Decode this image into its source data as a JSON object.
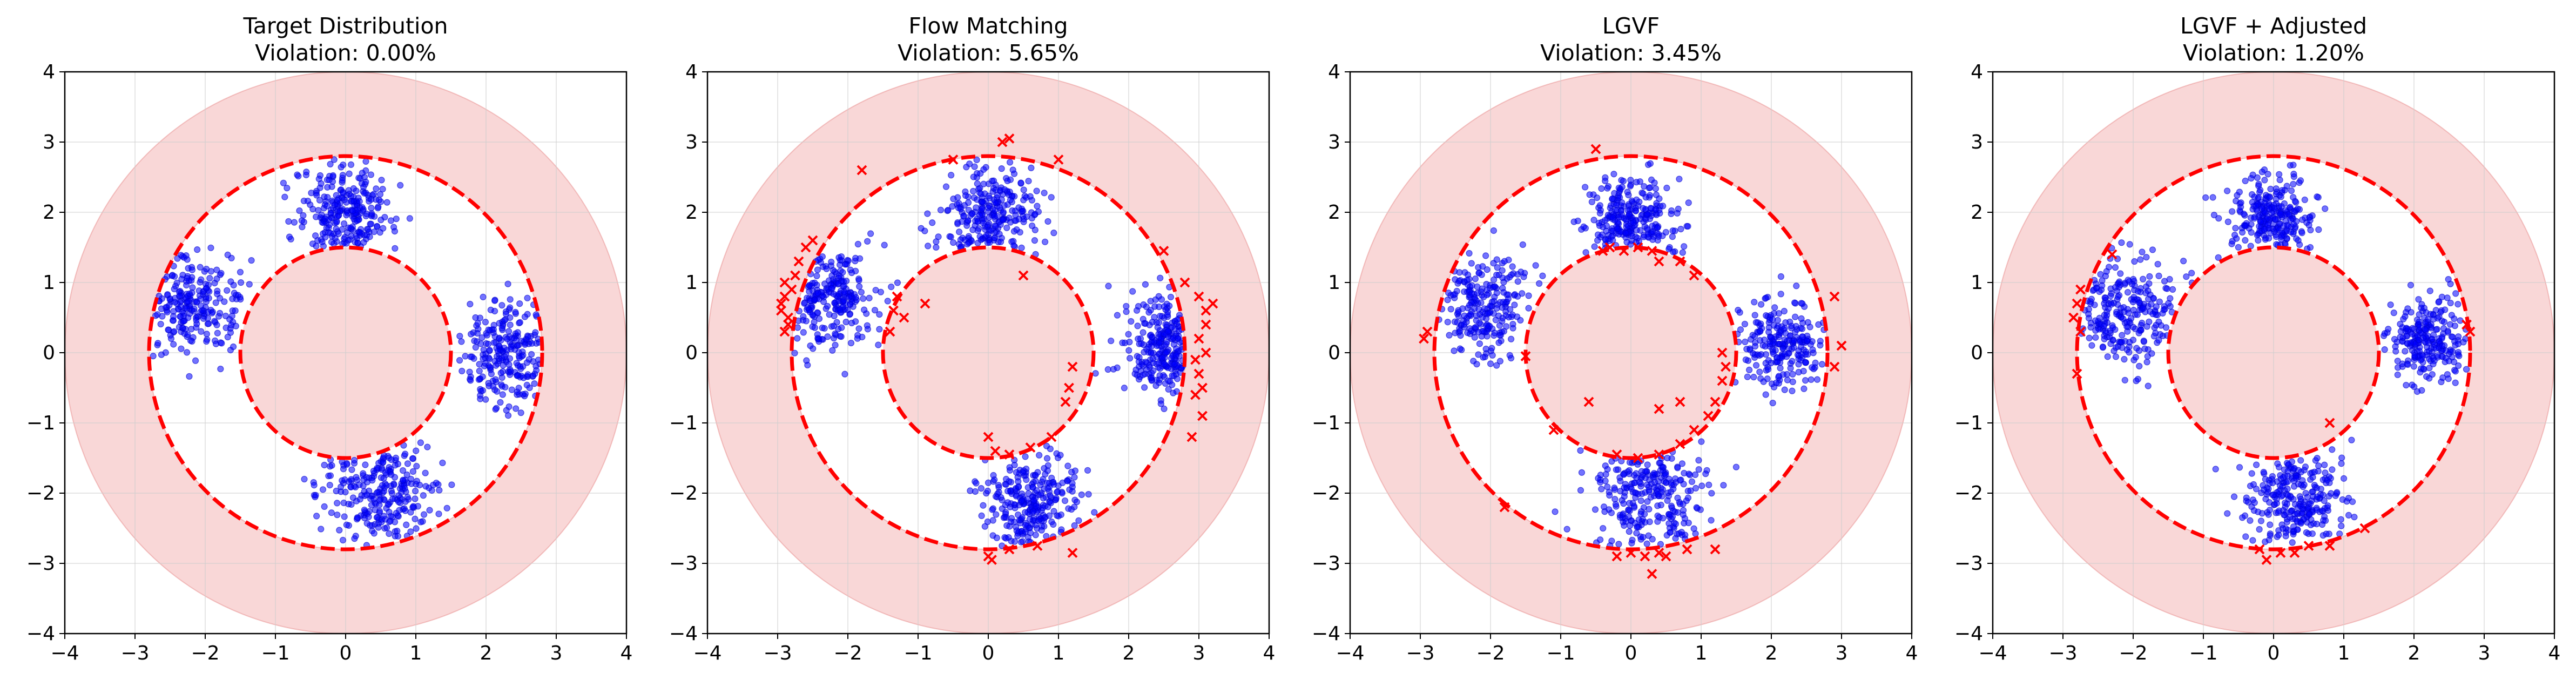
{
  "chart_data": [
    {
      "type": "scatter",
      "title": "Target Distribution",
      "subtitle": "Violation: 0.00%",
      "xlim": [
        -4,
        4
      ],
      "ylim": [
        -4,
        4
      ],
      "xticks": [
        "−4",
        "−3",
        "−2",
        "−1",
        "0",
        "1",
        "2",
        "3",
        "4"
      ],
      "yticks": [
        "−4",
        "−3",
        "−2",
        "−1",
        "0",
        "1",
        "2",
        "3",
        "4"
      ],
      "grid": true,
      "constraint": {
        "outer_shade_radius": 4.0,
        "annulus_outer_radius": 2.8,
        "annulus_inner_radius": 1.5
      },
      "clusters": [
        {
          "center": [
            0.0,
            2.0
          ],
          "spread": 0.35,
          "count": 260
        },
        {
          "center": [
            -2.2,
            0.7
          ],
          "spread": 0.35,
          "count": 230
        },
        {
          "center": [
            2.3,
            0.0
          ],
          "spread": 0.35,
          "count": 240
        },
        {
          "center": [
            0.5,
            -2.0
          ],
          "spread": 0.4,
          "count": 260
        }
      ],
      "violations": []
    },
    {
      "type": "scatter",
      "title": "Flow Matching",
      "subtitle": "Violation: 5.65%",
      "xlim": [
        -4,
        4
      ],
      "ylim": [
        -4,
        4
      ],
      "xticks": [
        "−4",
        "−3",
        "−2",
        "−1",
        "0",
        "1",
        "2",
        "3",
        "4"
      ],
      "yticks": [
        "−4",
        "−3",
        "−2",
        "−1",
        "0",
        "1",
        "2",
        "3",
        "4"
      ],
      "grid": true,
      "constraint": {
        "outer_shade_radius": 4.0,
        "annulus_outer_radius": 2.8,
        "annulus_inner_radius": 1.5
      },
      "clusters": [
        {
          "center": [
            0.0,
            1.95
          ],
          "spread": 0.35,
          "count": 260
        },
        {
          "center": [
            -2.3,
            0.8
          ],
          "spread": 0.35,
          "count": 240
        },
        {
          "center": [
            2.6,
            0.1
          ],
          "spread": 0.33,
          "count": 250
        },
        {
          "center": [
            0.6,
            -2.1
          ],
          "spread": 0.35,
          "count": 270
        }
      ],
      "violations": [
        [
          -2.9,
          0.8
        ],
        [
          -2.95,
          0.6
        ],
        [
          -2.85,
          0.5
        ],
        [
          -2.8,
          0.9
        ],
        [
          -2.75,
          1.1
        ],
        [
          -2.9,
          0.3
        ],
        [
          -2.95,
          0.7
        ],
        [
          -2.7,
          1.3
        ],
        [
          -2.6,
          1.5
        ],
        [
          -2.5,
          1.6
        ],
        [
          -2.85,
          0.4
        ],
        [
          -2.9,
          1.0
        ],
        [
          -1.8,
          2.6
        ],
        [
          -0.5,
          2.75
        ],
        [
          0.2,
          3.0
        ],
        [
          0.3,
          3.05
        ],
        [
          1.0,
          2.75
        ],
        [
          3.0,
          0.8
        ],
        [
          3.1,
          0.6
        ],
        [
          3.2,
          0.7
        ],
        [
          3.0,
          0.2
        ],
        [
          3.1,
          0.0
        ],
        [
          3.0,
          -0.3
        ],
        [
          2.95,
          -0.6
        ],
        [
          3.05,
          -0.9
        ],
        [
          2.9,
          -1.2
        ],
        [
          3.1,
          0.4
        ],
        [
          2.95,
          -0.1
        ],
        [
          3.05,
          -0.5
        ],
        [
          2.8,
          1.0
        ],
        [
          2.5,
          1.45
        ],
        [
          -1.3,
          0.8
        ],
        [
          -1.35,
          0.6
        ],
        [
          -1.2,
          0.5
        ],
        [
          -0.9,
          0.7
        ],
        [
          -1.4,
          0.3
        ],
        [
          1.2,
          -0.2
        ],
        [
          1.15,
          -0.5
        ],
        [
          1.1,
          -0.7
        ],
        [
          0.5,
          1.1
        ],
        [
          0.0,
          -1.2
        ],
        [
          0.1,
          -1.4
        ],
        [
          0.3,
          -1.45
        ],
        [
          0.6,
          -1.35
        ],
        [
          0.9,
          -1.2
        ],
        [
          0.0,
          -2.9
        ],
        [
          0.05,
          -2.95
        ],
        [
          0.3,
          -2.8
        ],
        [
          0.7,
          -2.75
        ],
        [
          1.2,
          -2.85
        ]
      ]
    },
    {
      "type": "scatter",
      "title": "LGVF",
      "subtitle": "Violation: 3.45%",
      "xlim": [
        -4,
        4
      ],
      "ylim": [
        -4,
        4
      ],
      "xticks": [
        "−4",
        "−3",
        "−2",
        "−1",
        "0",
        "1",
        "2",
        "3",
        "4"
      ],
      "yticks": [
        "−4",
        "−3",
        "−2",
        "−1",
        "0",
        "1",
        "2",
        "3",
        "4"
      ],
      "grid": true,
      "constraint": {
        "outer_shade_radius": 4.0,
        "annulus_outer_radius": 2.8,
        "annulus_inner_radius": 1.5
      },
      "clusters": [
        {
          "center": [
            0.0,
            1.85
          ],
          "spread": 0.33,
          "count": 260
        },
        {
          "center": [
            -2.1,
            0.6
          ],
          "spread": 0.38,
          "count": 240
        },
        {
          "center": [
            2.2,
            0.1
          ],
          "spread": 0.33,
          "count": 230
        },
        {
          "center": [
            0.3,
            -2.0
          ],
          "spread": 0.38,
          "count": 270
        }
      ],
      "violations": [
        [
          -2.9,
          0.3
        ],
        [
          -2.95,
          0.2
        ],
        [
          -1.8,
          -2.2
        ],
        [
          -0.5,
          2.9
        ],
        [
          -0.3,
          1.5
        ],
        [
          -0.1,
          1.45
        ],
        [
          0.1,
          1.5
        ],
        [
          0.3,
          1.45
        ],
        [
          0.4,
          1.3
        ],
        [
          0.7,
          1.3
        ],
        [
          0.9,
          1.1
        ],
        [
          -0.4,
          1.45
        ],
        [
          1.3,
          0.0
        ],
        [
          1.35,
          -0.2
        ],
        [
          1.3,
          -0.4
        ],
        [
          1.2,
          -0.7
        ],
        [
          1.1,
          -0.9
        ],
        [
          0.9,
          -1.1
        ],
        [
          0.7,
          -1.3
        ],
        [
          0.4,
          -1.45
        ],
        [
          0.1,
          -1.5
        ],
        [
          -0.2,
          -1.45
        ],
        [
          -1.5,
          -0.05
        ],
        [
          -1.1,
          -1.1
        ],
        [
          -0.6,
          -0.7
        ],
        [
          0.4,
          -0.8
        ],
        [
          0.7,
          -0.7
        ],
        [
          -0.2,
          -2.9
        ],
        [
          0.0,
          -2.85
        ],
        [
          0.2,
          -2.9
        ],
        [
          0.4,
          -2.85
        ],
        [
          0.5,
          -2.9
        ],
        [
          0.3,
          -3.15
        ],
        [
          1.2,
          -2.8
        ],
        [
          0.8,
          -2.8
        ],
        [
          2.9,
          0.8
        ],
        [
          3.0,
          0.1
        ],
        [
          2.9,
          -0.2
        ]
      ]
    },
    {
      "type": "scatter",
      "title": "LGVF + Adjusted",
      "subtitle": "Violation: 1.20%",
      "xlim": [
        -4,
        4
      ],
      "ylim": [
        -4,
        4
      ],
      "xticks": [
        "−4",
        "−3",
        "−2",
        "−1",
        "0",
        "1",
        "2",
        "3",
        "4"
      ],
      "yticks": [
        "−4",
        "−3",
        "−2",
        "−1",
        "0",
        "1",
        "2",
        "3",
        "4"
      ],
      "grid": true,
      "constraint": {
        "outer_shade_radius": 4.0,
        "annulus_outer_radius": 2.8,
        "annulus_inner_radius": 1.5
      },
      "clusters": [
        {
          "center": [
            0.0,
            1.95
          ],
          "spread": 0.3,
          "count": 250
        },
        {
          "center": [
            -2.1,
            0.6
          ],
          "spread": 0.38,
          "count": 250
        },
        {
          "center": [
            2.2,
            0.2
          ],
          "spread": 0.3,
          "count": 240
        },
        {
          "center": [
            0.3,
            -2.1
          ],
          "spread": 0.35,
          "count": 270
        }
      ],
      "violations": [
        [
          -2.8,
          0.7
        ],
        [
          -2.85,
          0.5
        ],
        [
          -2.75,
          0.3
        ],
        [
          -2.8,
          -0.3
        ],
        [
          -2.75,
          0.9
        ],
        [
          -2.3,
          1.4
        ],
        [
          2.8,
          0.3
        ],
        [
          2.75,
          0.4
        ],
        [
          0.8,
          -1.0
        ],
        [
          1.3,
          -2.5
        ],
        [
          -0.2,
          -2.8
        ],
        [
          -0.1,
          -2.95
        ],
        [
          0.1,
          -2.85
        ],
        [
          0.3,
          -2.85
        ],
        [
          0.5,
          -2.75
        ],
        [
          0.8,
          -2.75
        ]
      ]
    }
  ]
}
